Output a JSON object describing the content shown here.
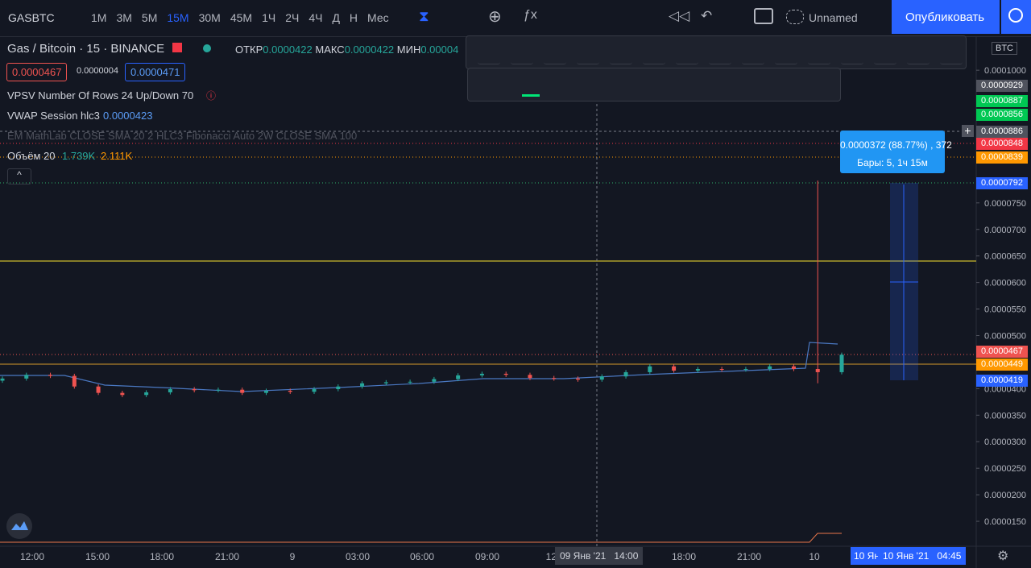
{
  "top_toolbar": {
    "symbol": "GASBTC",
    "intervals": [
      "1M",
      "3M",
      "5M",
      "15M",
      "30M",
      "45M",
      "1Ч",
      "2Ч",
      "4Ч",
      "Д",
      "Н",
      "Мес"
    ],
    "active_interval": 3,
    "layout_name": "Unnamed",
    "publish": "Опубликовать"
  },
  "legend": {
    "name": "Gas / Bitcoin",
    "interval": "15",
    "exchange": "BINANCE",
    "open_label": "ОТКР",
    "open": "0.0000422",
    "high_label": "МАКС",
    "high": "0.0000422",
    "low_label": "МИН",
    "low": "0.00004",
    "bid": "0.0000467",
    "spread": "0.0000004",
    "ask": "0.0000471",
    "indicators": [
      {
        "name": "VPSV Number Of Rows 24 Up/Down 70"
      },
      {
        "name": "VWAP Session hlc3",
        "value": "0.0000423"
      },
      {
        "name": "EM MathLab CLOSE SMA 20 2 HLC3 Fibonacci Auto 2W CLOSE SMA 100"
      },
      {
        "name": "Объём 20",
        "value": "1.739K",
        "value2": "2.111K"
      }
    ]
  },
  "chart_data": {
    "type": "candlestick",
    "ylim": [
      1.03e-05,
      0.0001064
    ],
    "yticks": [
      {
        "value": 0.0001,
        "label": "0.0001000"
      },
      {
        "value": 7.5e-05,
        "label": "0.0000750"
      },
      {
        "value": 7e-05,
        "label": "0.0000700"
      },
      {
        "value": 6.5e-05,
        "label": "0.0000650"
      },
      {
        "value": 6e-05,
        "label": "0.0000600"
      },
      {
        "value": 5.5e-05,
        "label": "0.0000550"
      },
      {
        "value": 5e-05,
        "label": "0.0000500"
      },
      {
        "value": 4e-05,
        "label": "0.0000400"
      },
      {
        "value": 3.5e-05,
        "label": "0.0000350"
      },
      {
        "value": 3e-05,
        "label": "0.0000300"
      },
      {
        "value": 2.5e-05,
        "label": "0.0000250"
      },
      {
        "value": 2e-05,
        "label": "0.0000200"
      },
      {
        "value": 1.5e-05,
        "label": "0.0000150"
      }
    ],
    "up_color": "#26a69a",
    "down_color": "#ef5350",
    "open": [
      4.15e-05,
      4.19e-05,
      4.26e-05,
      4.24e-05,
      4.04e-05,
      3.92e-05,
      3.88e-05,
      3.93e-05,
      3.99e-05,
      3.97e-05,
      3.98e-05,
      3.92e-05,
      3.96e-05,
      3.94e-05,
      3.99e-05,
      4.04e-05,
      4.1e-05,
      4.12e-05,
      4.13e-05,
      4.18e-05,
      4.25e-05,
      4.28e-05,
      4.26e-05,
      4.2e-05,
      4.19e-05,
      4.17e-05,
      4.23e-05,
      4.31e-05,
      4.42e-05,
      4.34e-05,
      4.37e-05,
      4.36e-05,
      4.37e-05,
      4.42e-05,
      4.37e-05,
      4.31e-05
    ],
    "high": [
      4.23e-05,
      4.3e-05,
      4.3e-05,
      4.28e-05,
      4.08e-05,
      3.96e-05,
      3.97e-05,
      4.03e-05,
      4.03e-05,
      4.02e-05,
      4.02e-05,
      4e-05,
      4e-05,
      4.03e-05,
      4.08e-05,
      4.14e-05,
      4.16e-05,
      4.17e-05,
      4.22e-05,
      4.29e-05,
      4.32e-05,
      4.32e-05,
      4.3e-05,
      4.24e-05,
      4.23e-05,
      4.27e-05,
      4.35e-05,
      4.46e-05,
      4.46e-05,
      4.41e-05,
      4.41e-05,
      4.41e-05,
      4.46e-05,
      4.46e-05,
      7.92e-05,
      4.68e-05
    ],
    "low": [
      4.11e-05,
      4.15e-05,
      4.2e-05,
      4e-05,
      3.88e-05,
      3.84e-05,
      3.84e-05,
      3.89e-05,
      3.93e-05,
      3.93e-05,
      3.88e-05,
      3.88e-05,
      3.9e-05,
      3.9e-05,
      3.95e-05,
      4e-05,
      4.06e-05,
      4.08e-05,
      4.09e-05,
      4.14e-05,
      4.21e-05,
      4.22e-05,
      4.16e-05,
      4.15e-05,
      4.13e-05,
      4.13e-05,
      4.19e-05,
      4.27e-05,
      4.3e-05,
      4.3e-05,
      4.32e-05,
      4.32e-05,
      4.33e-05,
      4.33e-05,
      4.1e-05,
      4.27e-05
    ],
    "close": [
      4.19e-05,
      4.26e-05,
      4.24e-05,
      4.04e-05,
      3.92e-05,
      3.88e-05,
      3.93e-05,
      3.99e-05,
      3.97e-05,
      3.98e-05,
      3.92e-05,
      3.96e-05,
      3.94e-05,
      3.99e-05,
      4.04e-05,
      4.1e-05,
      4.12e-05,
      4.13e-05,
      4.18e-05,
      4.25e-05,
      4.28e-05,
      4.26e-05,
      4.2e-05,
      4.19e-05,
      4.17e-05,
      4.23e-05,
      4.31e-05,
      4.42e-05,
      4.34e-05,
      4.37e-05,
      4.36e-05,
      4.37e-05,
      4.42e-05,
      4.37e-05,
      4.31e-05,
      4.64e-05
    ]
  },
  "price_badges": [
    {
      "label": "0.0000929",
      "color": "#50535e"
    },
    {
      "label": "0.0000887",
      "color": "#00c853"
    },
    {
      "label": "0.0000856",
      "color": "#00c853"
    },
    {
      "label": "0.0000886",
      "color": "#50535e"
    },
    {
      "label": "0.0000848",
      "color": "#f23645"
    },
    {
      "label": "0.0000839",
      "color": "#ff9800"
    },
    {
      "label": "0.0000792",
      "color": "#2962ff"
    },
    {
      "label": "0.0000467",
      "color": "#ef5350"
    },
    {
      "label": "0.0000449",
      "color": "#ff9800"
    },
    {
      "label": "0.0000419",
      "color": "#2962ff"
    }
  ],
  "currency": "BTC",
  "measure": {
    "line1": "0.0000372 (88.77%) , 372",
    "line2": "Бары: 5, 1ч 15м"
  },
  "time_axis": [
    "12:00",
    "15:00",
    "18:00",
    "21:00",
    "9",
    "03:00",
    "06:00",
    "09:00",
    "12:",
    "18:00",
    "21:00",
    "10"
  ],
  "crosshair": {
    "date": "09 Янв '21",
    "time": "14:00"
  },
  "range_labels": {
    "start": "10 Ян",
    "end_date": "10 Янв '21",
    "end_time": "04:45"
  }
}
